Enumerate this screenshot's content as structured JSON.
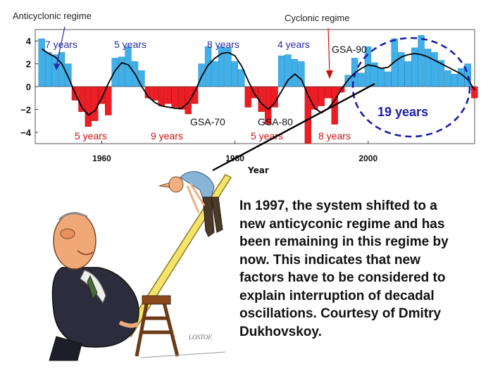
{
  "chart_data": {
    "type": "bar",
    "xlabel": "Year",
    "ylabel": "",
    "xlim": [
      1950,
      2016
    ],
    "ylim": [
      -5,
      5
    ],
    "x_ticks": [
      "1960",
      "1980",
      "2000"
    ],
    "y_ticks": [
      "4",
      "2",
      "0",
      "−2",
      "−4"
    ],
    "x": [
      1951,
      1952,
      1953,
      1954,
      1955,
      1956,
      1957,
      1958,
      1959,
      1960,
      1961,
      1962,
      1963,
      1964,
      1965,
      1966,
      1967,
      1968,
      1969,
      1970,
      1971,
      1972,
      1973,
      1974,
      1975,
      1976,
      1977,
      1978,
      1979,
      1980,
      1981,
      1982,
      1983,
      1984,
      1985,
      1986,
      1987,
      1988,
      1989,
      1990,
      1991,
      1992,
      1993,
      1994,
      1995,
      1996,
      1997,
      1998,
      1999,
      2000,
      2001,
      2002,
      2003,
      2004,
      2005,
      2006,
      2007,
      2008,
      2009,
      2010,
      2011,
      2012,
      2013,
      2014,
      2015,
      2016
    ],
    "values": [
      4.2,
      3.0,
      2.8,
      3.0,
      2.0,
      -1.2,
      -2.2,
      -3.5,
      -3.0,
      -1.5,
      -2.5,
      2.5,
      2.6,
      3.5,
      2.2,
      1.4,
      -1.0,
      -1.2,
      -1.7,
      -1.5,
      -1.8,
      -2.0,
      -2.4,
      -1.5,
      2.0,
      3.5,
      2.2,
      3.5,
      3.4,
      2.2,
      1.5,
      -1.8,
      -1.0,
      -2.2,
      -3.3,
      -1.8,
      2.7,
      2.8,
      2.4,
      2.2,
      -5.0,
      -2.0,
      -1.7,
      -1.0,
      -3.3,
      -0.5,
      1.0,
      2.5,
      1.2,
      3.5,
      2.1,
      1.6,
      1.3,
      4.2,
      3.0,
      2.2,
      3.4,
      4.5,
      3.3,
      3.0,
      2.3,
      1.4,
      1.1,
      1.6,
      2.0,
      -1.0
    ],
    "smooth": [
      3.3,
      2.9,
      2.6,
      2.0,
      0.8,
      -0.6,
      -1.8,
      -2.5,
      -2.1,
      -1.0,
      0.3,
      1.4,
      2.1,
      1.9,
      1.1,
      0.0,
      -0.9,
      -1.4,
      -1.7,
      -1.8,
      -1.9,
      -1.9,
      -1.4,
      -0.4,
      0.9,
      1.9,
      2.5,
      2.9,
      3.0,
      2.7,
      1.8,
      0.5,
      -0.7,
      -1.5,
      -2.0,
      -1.4,
      -0.4,
      0.6,
      1.1,
      0.6,
      -0.8,
      -1.9,
      -2.3,
      -1.9,
      -1.2,
      -0.2,
      0.6,
      1.2,
      1.6,
      1.9,
      1.8,
      1.6,
      1.7,
      2.2,
      2.6,
      2.8,
      2.9,
      2.8,
      2.6,
      2.3,
      2.0,
      1.7,
      1.4,
      1.1,
      0.6,
      -0.3
    ],
    "annotations": {
      "anticyclonic_regime": "Anticyclonic regime",
      "cyclonic_regime": "Cyclonic regime",
      "top_periods": [
        "7 years",
        "5 years",
        "8 years",
        "4 years"
      ],
      "bottom_periods": [
        "5 years",
        "9 years",
        "5 years",
        "8 years"
      ],
      "gsa_70": "GSA-70",
      "gsa_80": "GSA-80",
      "gsa_90": "GSA-90",
      "highlight": "19 years"
    },
    "colors": {
      "positive": "#3fb0ea",
      "negative": "#ee1c24",
      "line": "#000000",
      "label_blue": "#2a2aa8",
      "label_red": "#cc1111",
      "ellipse": "#1c1ca8"
    }
  },
  "caption": {
    "line1": "In 1997, the system shifted to a",
    "line2": "new anticyconic regime and has",
    "line3": "been remaining in this regime by",
    "line4": "now. This indicates that new",
    "line5": "factors have to be considered to",
    "line6": "explain interruption of decadal",
    "line7": "oscillations. Courtesy of Dmitry",
    "line8": "Dukhovskoy."
  },
  "cartoon": {
    "signature": "LOSTOF."
  }
}
